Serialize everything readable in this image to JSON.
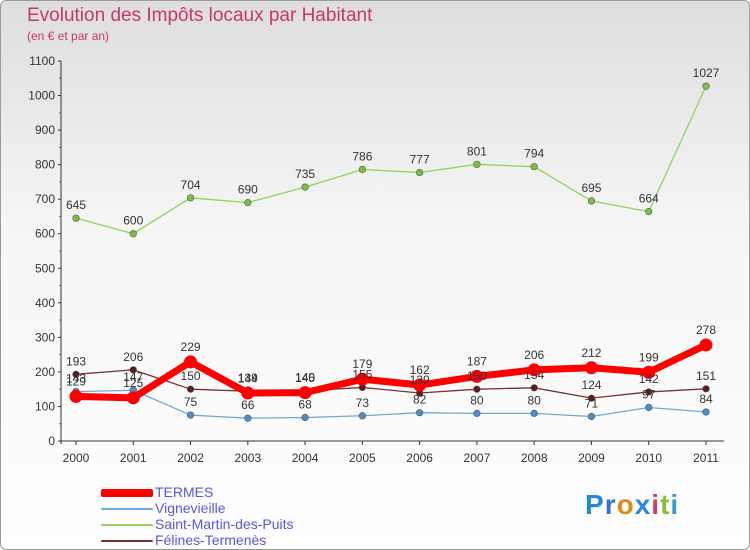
{
  "title": "Evolution des Impôts locaux par Habitant",
  "subtitle": "(en € et par an)",
  "logo": {
    "text": "Proxiti",
    "letter_colors": [
      "#1e8ad6",
      "#3a6fcf",
      "#e08a1a",
      "#2a8ae0",
      "#d43b6d",
      "#8bbf2a",
      "#3a9ad6"
    ]
  },
  "chart_data": {
    "type": "line",
    "categories": [
      "2000",
      "2001",
      "2002",
      "2003",
      "2004",
      "2005",
      "2006",
      "2007",
      "2008",
      "2009",
      "2010",
      "2011"
    ],
    "ylim": [
      0,
      1100
    ],
    "yticks": [
      0,
      100,
      200,
      300,
      400,
      500,
      600,
      700,
      800,
      900,
      1000,
      1100
    ],
    "series": [
      {
        "name": "Saint-Martin-des-Puits",
        "color": "#8fd35a",
        "point_color": "#7ac142",
        "stroke": "thin",
        "values": [
          645,
          600,
          704,
          690,
          735,
          786,
          777,
          801,
          794,
          695,
          664,
          1027
        ]
      },
      {
        "name": "Vignevieille",
        "color": "#6fa8d6",
        "point_color": "#4a8ecc",
        "stroke": "thin",
        "values": [
          143,
          147,
          75,
          66,
          68,
          73,
          82,
          80,
          80,
          71,
          97,
          84
        ]
      },
      {
        "name": "Félines-Termenès",
        "color": "#7a3131",
        "point_color": "#5e1d1d",
        "stroke": "thin",
        "values": [
          193,
          206,
          150,
          144,
          145,
          155,
          139,
          150,
          154,
          124,
          142,
          151
        ]
      },
      {
        "name": "TERMES",
        "color": "#ff0000",
        "point_color": "#ff0000",
        "stroke": "thick",
        "values": [
          129,
          125,
          229,
          139,
          140,
          179,
          162,
          187,
          206,
          212,
          199,
          278
        ]
      }
    ],
    "legend_order": [
      "TERMES",
      "Vignevieille",
      "Saint-Martin-des-Puits",
      "Félines-Termenès"
    ],
    "legend_position": "bottom-left",
    "grid": false
  }
}
